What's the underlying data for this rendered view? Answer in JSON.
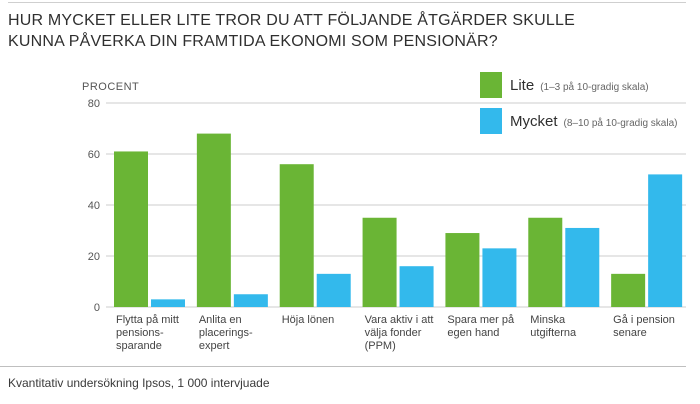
{
  "title_lines": [
    "HUR MYCKET ELLER LITE TROR DU ATT FÖLJANDE ÅTGÄRDER SKULLE",
    "KUNNA PÅVERKA DIN FRAMTIDA EKONOMI SOM PENSIONÄR?"
  ],
  "footnote": "Kvantitativ undersökning Ipsos, 1 000 intervjuade",
  "colors": {
    "lite": "#6ab535",
    "mycket": "#33b9ec",
    "grid": "#cccccc"
  },
  "chart_data": {
    "type": "bar",
    "title": "HUR MYCKET ELLER LITE TROR DU ATT FÖLJANDE ÅTGÄRDER SKULLE KUNNA PÅVERKA DIN FRAMTIDA EKONOMI SOM PENSIONÄR?",
    "ylabel": "PROCENT",
    "xlabel": "",
    "ylim": [
      0,
      80
    ],
    "yticks": [
      0,
      20,
      40,
      60,
      80
    ],
    "grid": true,
    "legend_position": "top-right",
    "categories": [
      [
        "Flytta på mitt",
        "pensions-",
        "sparande"
      ],
      [
        "Anlita en",
        "placerings-",
        "expert"
      ],
      [
        "Höja lönen"
      ],
      [
        "Vara aktiv i att",
        "välja fonder",
        "(PPM)"
      ],
      [
        "Spara mer på",
        "egen hand"
      ],
      [
        "Minska",
        "utgifterna"
      ],
      [
        "Gå i pension",
        "senare"
      ]
    ],
    "series": [
      {
        "name": "Lite",
        "description": "(1–3 på 10-gradig skala)",
        "values": [
          61,
          68,
          56,
          35,
          29,
          35,
          13
        ]
      },
      {
        "name": "Mycket",
        "description": "(8–10 på 10-gradig skala)",
        "values": [
          3,
          5,
          13,
          16,
          23,
          31,
          52
        ]
      }
    ]
  }
}
